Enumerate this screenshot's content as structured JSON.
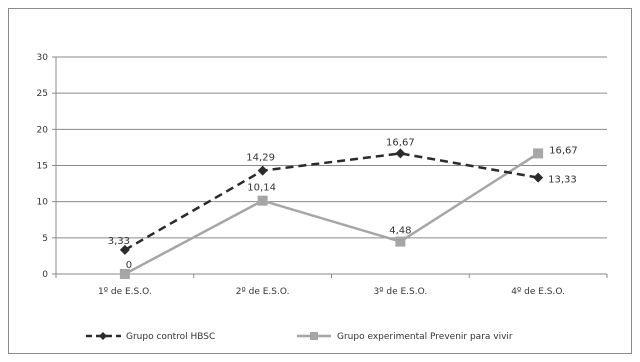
{
  "chart_data": {
    "type": "line",
    "categories": [
      "1º de E.S.O.",
      "2º de E.S.O.",
      "3º de E.S.O.",
      "4º de E.S.O."
    ],
    "ylim": [
      0,
      30
    ],
    "yticks": [
      "0",
      "5",
      "10",
      "15",
      "20",
      "25",
      "30"
    ],
    "grid": true,
    "legend_position": "bottom",
    "series": [
      {
        "name": "Grupo control HBSC",
        "values": [
          3.33,
          14.29,
          16.67,
          13.33
        ],
        "labels": [
          "3,33",
          "14,29",
          "16,67",
          "13,33"
        ],
        "color": "#2b2b2b",
        "style": "dashed",
        "marker": "diamond"
      },
      {
        "name": "Grupo experimental Prevenir para vivir",
        "values": [
          0,
          10.14,
          4.48,
          16.67
        ],
        "labels": [
          "0",
          "10,14",
          "4,48",
          "16,67"
        ],
        "color": "#a6a6a6",
        "style": "solid",
        "marker": "square"
      }
    ]
  }
}
